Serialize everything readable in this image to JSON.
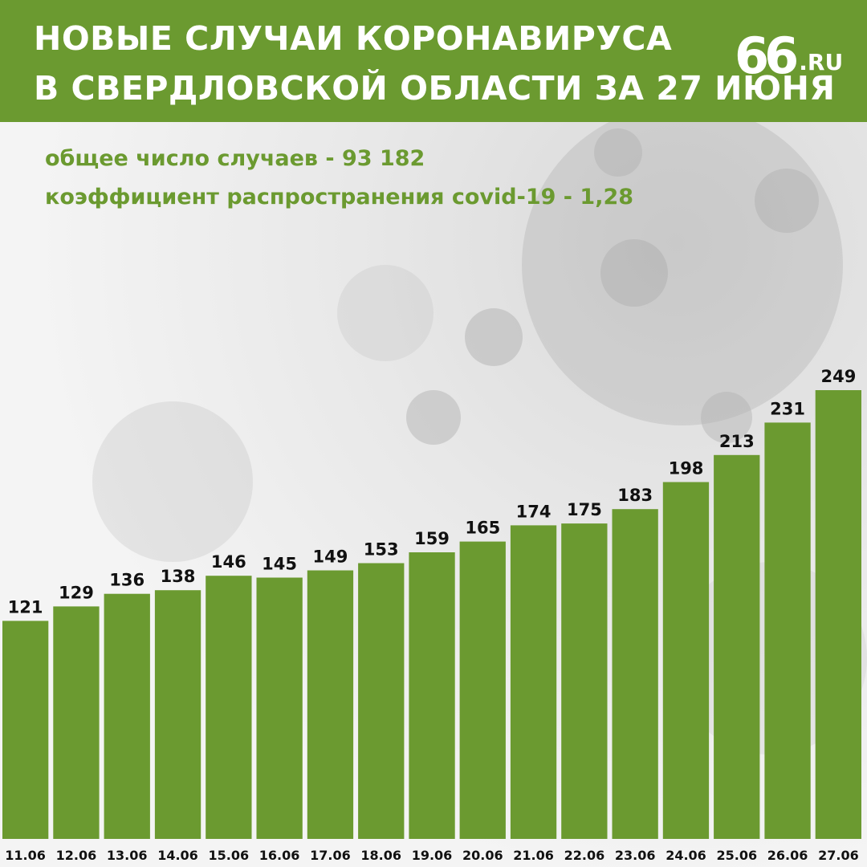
{
  "header": {
    "title_line1": "НОВЫЕ СЛУЧАИ КОРОНАВИРУСА",
    "title_line2": "В СВЕРДЛОВСКОЙ ОБЛАСТИ ЗА 27 ИЮНЯ",
    "logo_number": "66",
    "logo_suffix": ".RU"
  },
  "stats": {
    "total": "общее число случаев - 93 182",
    "coefficient": "коэффициент распространения covid-19 - 1,28"
  },
  "colors": {
    "brand": "#6b9a30",
    "bar": "#6b9a30",
    "text": "#111111"
  },
  "chart_data": {
    "type": "bar",
    "categories": [
      "11.06",
      "12.06",
      "13.06",
      "14.06",
      "15.06",
      "16.06",
      "17.06",
      "18.06",
      "19.06",
      "20.06",
      "21.06",
      "22.06",
      "23.06",
      "24.06",
      "25.06",
      "26.06",
      "27.06"
    ],
    "values": [
      121,
      129,
      136,
      138,
      146,
      145,
      149,
      153,
      159,
      165,
      174,
      175,
      183,
      198,
      213,
      231,
      249
    ],
    "ylim": [
      0,
      270
    ],
    "grid": false,
    "legend": "none"
  }
}
